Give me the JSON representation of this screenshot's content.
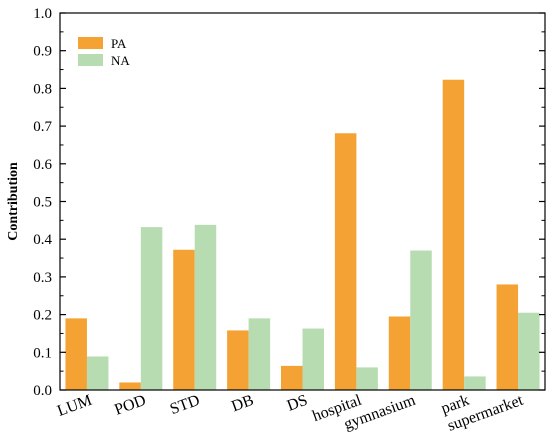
{
  "chart_data": {
    "type": "bar",
    "title": "",
    "xlabel": "",
    "ylabel": "Contribution",
    "ylim": [
      0,
      1.0
    ],
    "yticks": [
      "0.0",
      "0.1",
      "0.2",
      "0.3",
      "0.4",
      "0.5",
      "0.6",
      "0.7",
      "0.8",
      "0.9",
      "1.0"
    ],
    "categories": [
      "LUM",
      "POD",
      "STD",
      "DB",
      "DS",
      "hospital",
      "gymnasium",
      "park",
      "supermarket"
    ],
    "series": [
      {
        "name": "PA",
        "color": "#f5a234",
        "values": [
          0.19,
          0.02,
          0.372,
          0.158,
          0.064,
          0.681,
          0.195,
          0.823,
          0.28
        ]
      },
      {
        "name": "NA",
        "color": "#b7dcb2",
        "values": [
          0.089,
          0.432,
          0.438,
          0.19,
          0.163,
          0.06,
          0.37,
          0.036,
          0.205
        ]
      }
    ],
    "legend_position": "top-left",
    "grid": false
  }
}
